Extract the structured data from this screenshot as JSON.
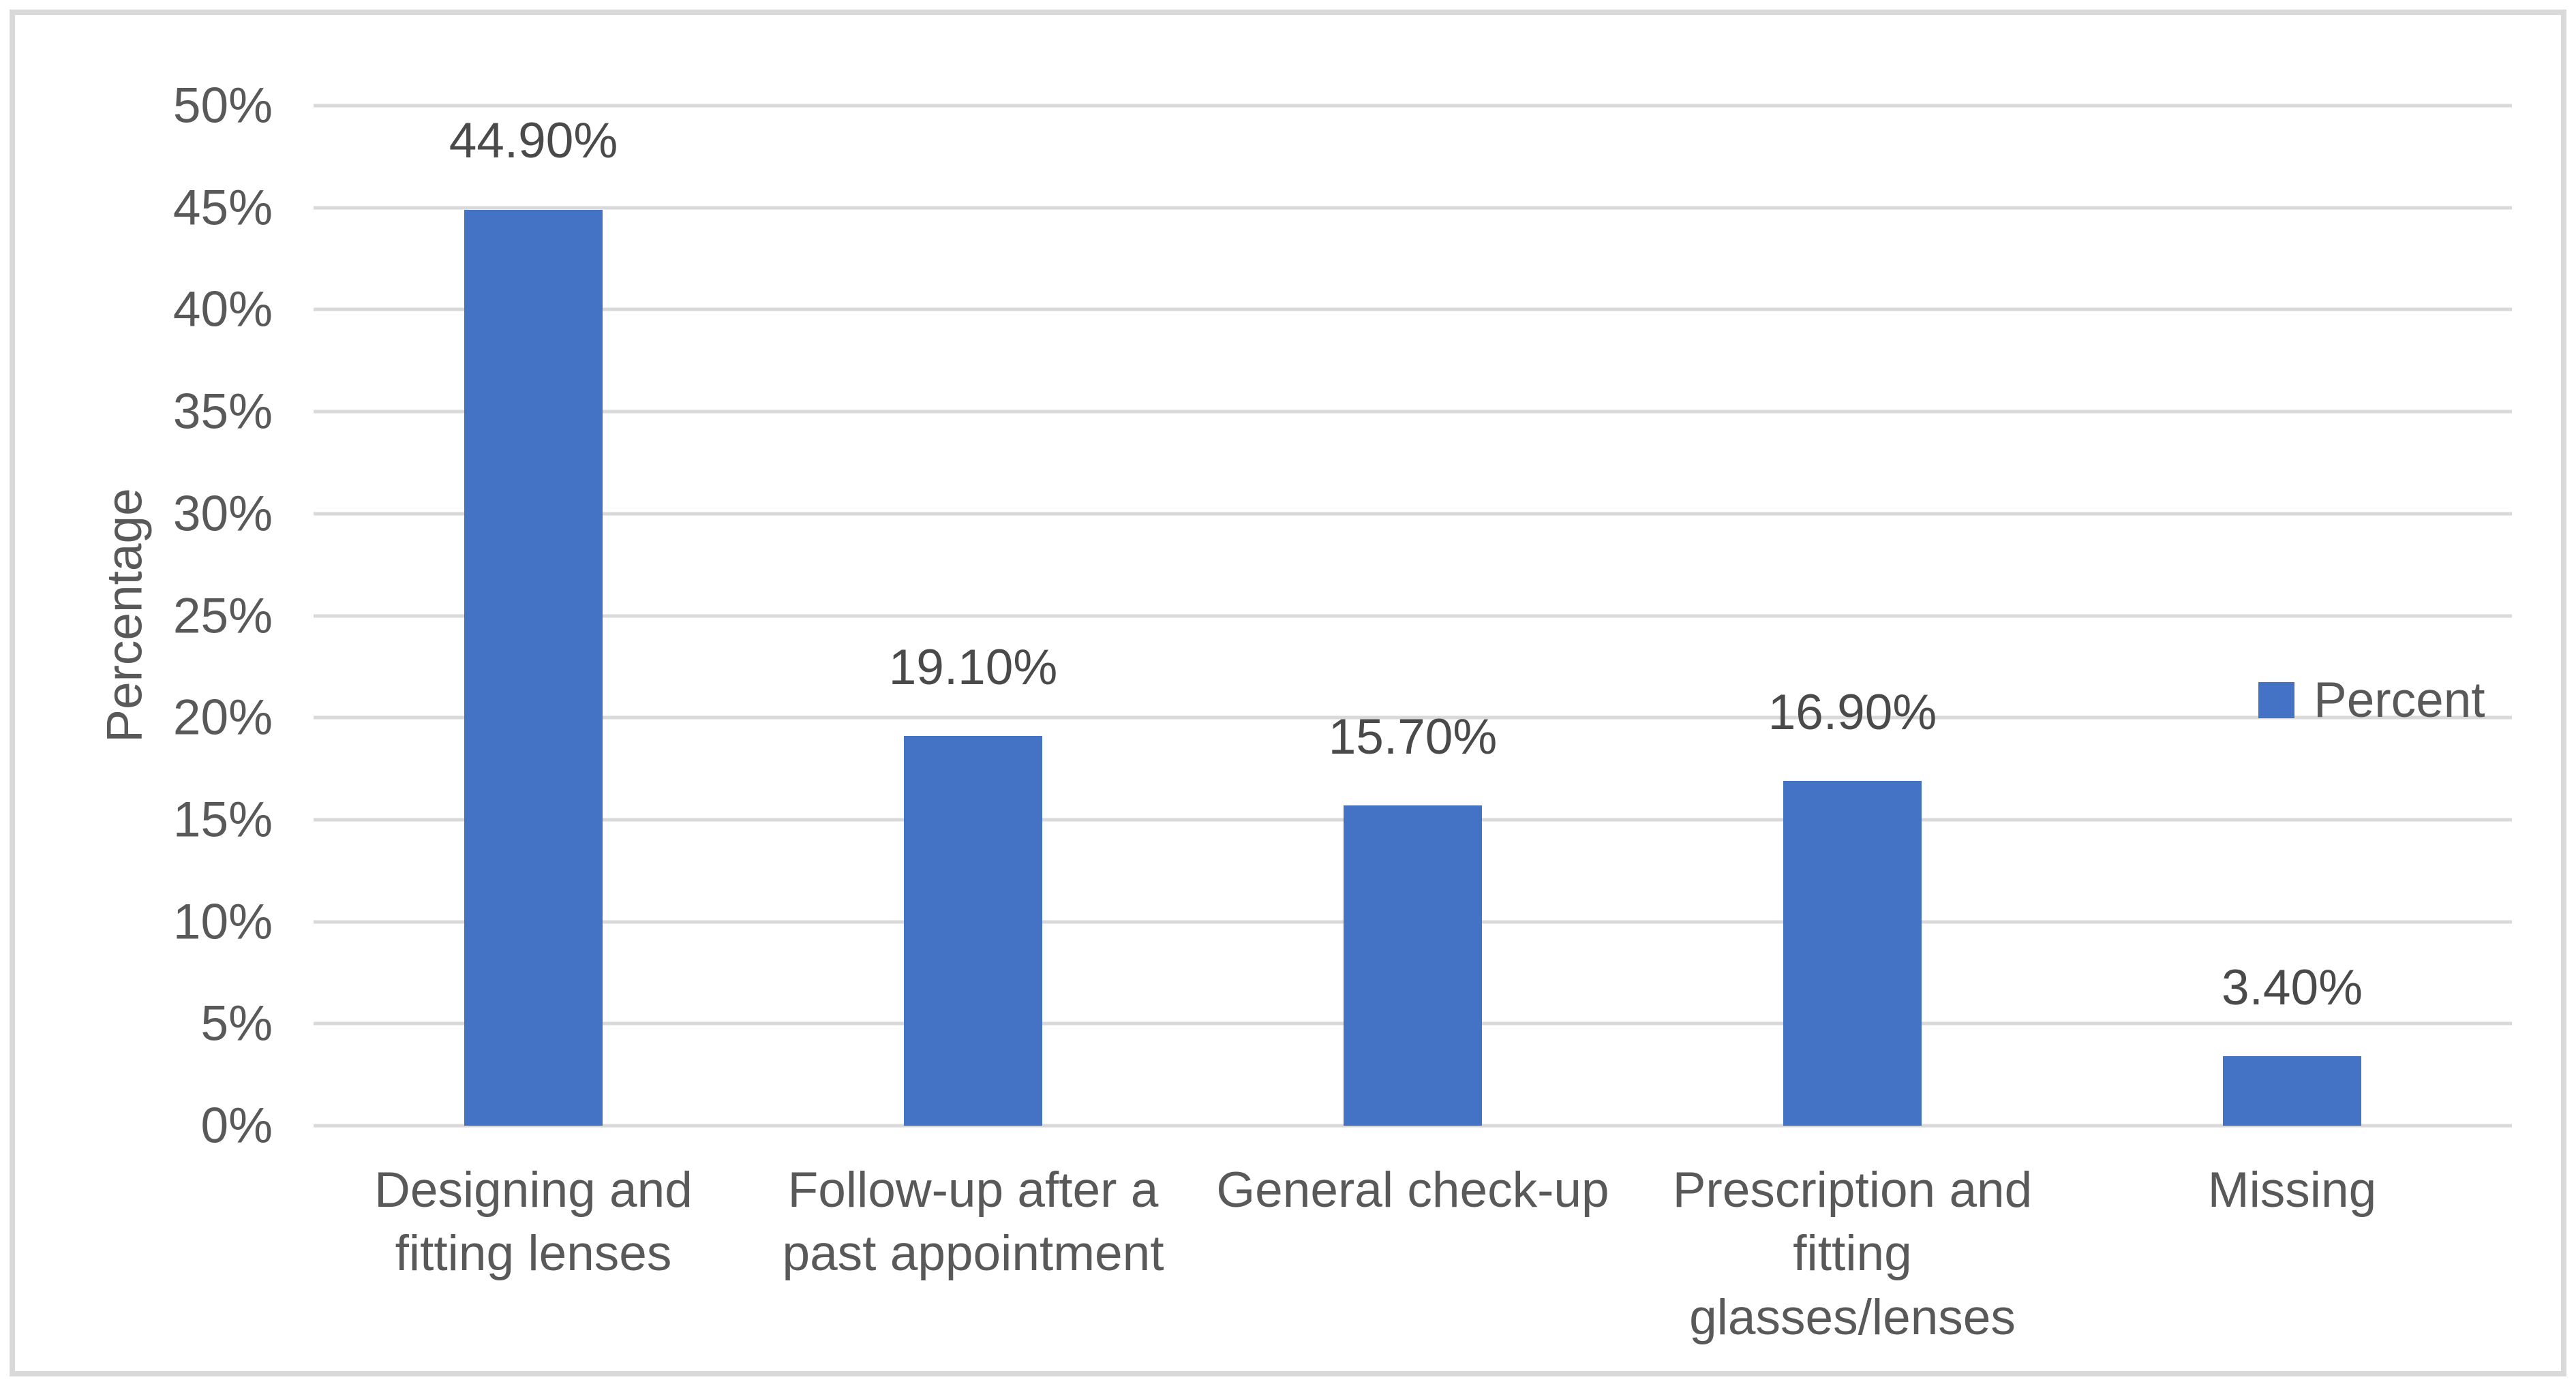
{
  "chart_data": {
    "type": "bar",
    "categories": [
      "Designing and fitting lenses",
      "Follow-up after a past appointment",
      "General check-up",
      "Prescription and fitting glasses/lenses",
      "Missing"
    ],
    "series": [
      {
        "name": "Percent",
        "values": [
          44.9,
          19.1,
          15.7,
          16.9,
          3.4
        ],
        "value_labels": [
          "44.90%",
          "19.10%",
          "15.70%",
          "16.90%",
          "3.40%"
        ]
      }
    ],
    "ylabel": "Percentage",
    "xlabel": "",
    "ylim": [
      0,
      50
    ],
    "ytick_step": 5,
    "ytick_labels": [
      "0%",
      "5%",
      "10%",
      "15%",
      "20%",
      "25%",
      "30%",
      "35%",
      "40%",
      "45%",
      "50%"
    ],
    "grid": "horizontal",
    "legend": {
      "position": "right",
      "entries": [
        "Percent"
      ]
    },
    "colors": {
      "bar": "#4472C4",
      "gridline": "#D9D9D9",
      "axis_text": "#595959",
      "data_label_text": "#4A4A4A",
      "frame_border": "#D9D9D9",
      "background": "#FFFFFF"
    }
  }
}
